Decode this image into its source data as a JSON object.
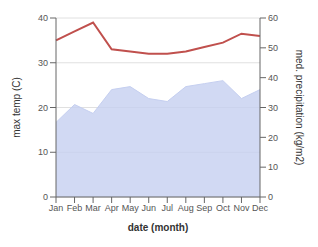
{
  "chart_data": {
    "type": "line",
    "xlabel": "date (month)",
    "ylabel": "max temp (C)",
    "y2label": "med. precipitation (kg/m2)",
    "categories": [
      "Jan",
      "Feb",
      "Mar",
      "Apr",
      "May",
      "Jun",
      "Jul",
      "Aug",
      "Sep",
      "Oct",
      "Nov",
      "Dec"
    ],
    "series": [
      {
        "type": "area",
        "axis": "y2",
        "color": "#c5cff0",
        "values": [
          25,
          31,
          28,
          36,
          37,
          33,
          32,
          37,
          38,
          39,
          33,
          36
        ]
      },
      {
        "type": "line",
        "color": "#c0504d",
        "values": [
          35,
          37,
          39,
          33,
          32.5,
          32,
          32,
          32.5,
          33.5,
          34.5,
          36.5,
          36
        ]
      }
    ],
    "ylim": [
      0,
      40
    ],
    "yticks": [
      0,
      10,
      20,
      30,
      40
    ],
    "y2lim": [
      0,
      60
    ],
    "y2ticks": [
      0,
      10,
      20,
      30,
      40,
      50,
      60
    ],
    "grid": true
  }
}
